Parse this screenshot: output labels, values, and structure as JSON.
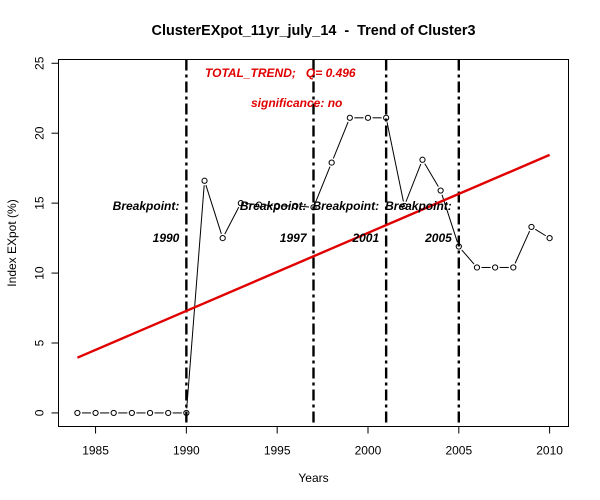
{
  "chart_data": {
    "type": "line",
    "title": "ClusterEXpot_11yr_july_14  -  Trend of Cluster3",
    "xlabel": "Years",
    "ylabel": "Index EXpot (%)",
    "xlim": [
      1984,
      2010
    ],
    "ylim": [
      0,
      25
    ],
    "x_ticks": [
      1985,
      1990,
      1995,
      2000,
      2005,
      2010
    ],
    "y_ticks": [
      0,
      5,
      10,
      15,
      20,
      25
    ],
    "grid": false,
    "series": [
      {
        "marker": "open-circle",
        "color": "#000000",
        "x": [
          1984,
          1985,
          1986,
          1987,
          1988,
          1989,
          1990,
          1991,
          1992,
          1993,
          1994,
          1995,
          1996,
          1997,
          1998,
          1999,
          2000,
          2001,
          2002,
          2003,
          2004,
          2005,
          2006,
          2007,
          2008,
          2009,
          2010
        ],
        "y": [
          0,
          0,
          0,
          0,
          0,
          0,
          0,
          16.6,
          12.5,
          15.0,
          14.9,
          14.8,
          14.8,
          14.7,
          17.9,
          21.1,
          21.1,
          21.1,
          14.8,
          18.1,
          15.9,
          11.9,
          10.4,
          10.4,
          10.4,
          13.3,
          12.5
        ]
      }
    ],
    "trend_line": {
      "x": [
        1984,
        2010
      ],
      "y": [
        3.95,
        18.45
      ],
      "color": "#e00000"
    },
    "breakpoints": [
      {
        "year": 1990,
        "label": "Breakpoint:"
      },
      {
        "year": 1997,
        "label": "Breakpoint:"
      },
      {
        "year": 2001,
        "label": "Breakpoint:"
      },
      {
        "year": 2005,
        "label": "Breakpoint:"
      }
    ],
    "breakpoint_line_color": "#000000",
    "annotations": {
      "trend": "TOTAL_TREND;   Q= 0.496",
      "significance": "significance: no",
      "color": "#e00000"
    }
  }
}
